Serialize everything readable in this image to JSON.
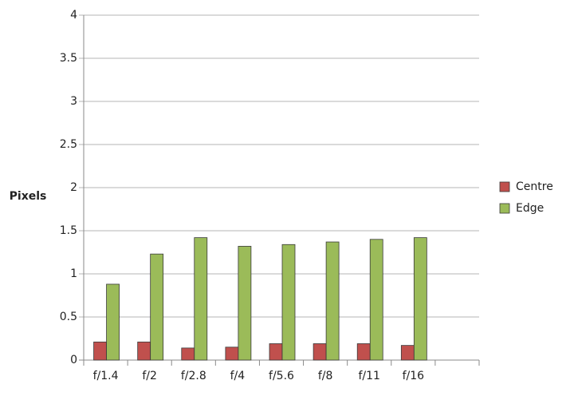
{
  "chart_data": {
    "type": "bar",
    "y_label": "Pixels",
    "categories": [
      "f/1.4",
      "f/2",
      "f/2.8",
      "f/4",
      "f/5.6",
      "f/8",
      "f/11",
      "f/16",
      null
    ],
    "series": [
      {
        "name": "Centre",
        "color": "#c0504d",
        "values": [
          0.21,
          0.21,
          0.14,
          0.15,
          0.19,
          0.19,
          0.19,
          0.17,
          null
        ]
      },
      {
        "name": "Edge",
        "color": "#9bbb59",
        "values": [
          0.88,
          1.23,
          1.42,
          1.32,
          1.34,
          1.37,
          1.4,
          1.42,
          null
        ]
      }
    ],
    "ylim": [
      0,
      4
    ],
    "yticks": [
      0,
      0.5,
      1,
      1.5,
      2,
      2.5,
      3,
      3.5,
      4
    ],
    "grid": true,
    "legend": "right"
  }
}
